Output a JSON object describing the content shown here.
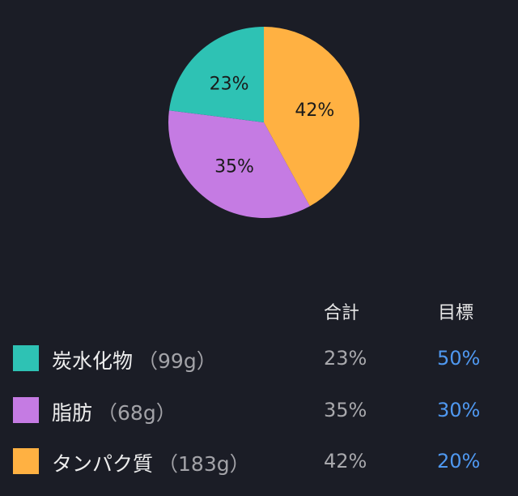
{
  "chart_data": {
    "type": "pie",
    "slices": [
      {
        "name": "タンパク質",
        "value": 42,
        "label": "42%",
        "color": "#ffb142"
      },
      {
        "name": "脂肪",
        "value": 35,
        "label": "35%",
        "color": "#c57be3"
      },
      {
        "name": "炭水化物",
        "value": 23,
        "label": "23%",
        "color": "#2ec2b4"
      }
    ]
  },
  "table": {
    "headers": {
      "total": "合計",
      "goal": "目標"
    },
    "rows": [
      {
        "name": "炭水化物",
        "grams": "（99g）",
        "total": "23%",
        "goal": "50%",
        "color": "#2ec2b4"
      },
      {
        "name": "脂肪",
        "grams": "（68g）",
        "total": "35%",
        "goal": "30%",
        "color": "#c57be3"
      },
      {
        "name": "タンパク質",
        "grams": "（183g）",
        "total": "42%",
        "goal": "20%",
        "color": "#ffb142"
      }
    ]
  }
}
